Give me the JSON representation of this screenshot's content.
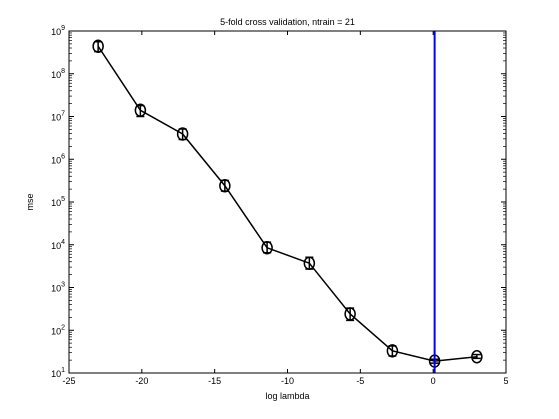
{
  "chart_data": {
    "type": "line",
    "title": "5-fold cross validation, ntrain = 21",
    "xlabel": "log lambda",
    "ylabel": "mse",
    "xlim": [
      -25,
      5
    ],
    "ylim": [
      10,
      1000000000
    ],
    "yscale": "log",
    "grid": false,
    "x_ticks": [
      -25,
      -20,
      -15,
      -10,
      -5,
      0,
      5
    ],
    "y_tick_exponents": [
      1,
      2,
      3,
      4,
      5,
      6,
      7,
      8,
      9
    ],
    "series": [
      {
        "color": "#000000",
        "marker": "circle",
        "x": [
          -23.0,
          -20.1,
          -17.2,
          -14.3,
          -11.4,
          -8.5,
          -5.7,
          -2.8,
          0.1,
          3.0
        ],
        "values": [
          440000000,
          14000000,
          3900000,
          240000,
          8500,
          3700,
          240,
          33,
          19,
          24
        ],
        "error_lower": [
          330000000,
          10000000,
          2900000,
          180000,
          6500,
          2700,
          170,
          25,
          17,
          22
        ],
        "error_upper": [
          560000000,
          18000000,
          5100000,
          320000,
          11500,
          5100,
          330,
          43,
          21,
          27
        ]
      }
    ],
    "annotations": [
      {
        "type": "vline",
        "x": 0.1,
        "color": "#0000ff"
      }
    ]
  }
}
